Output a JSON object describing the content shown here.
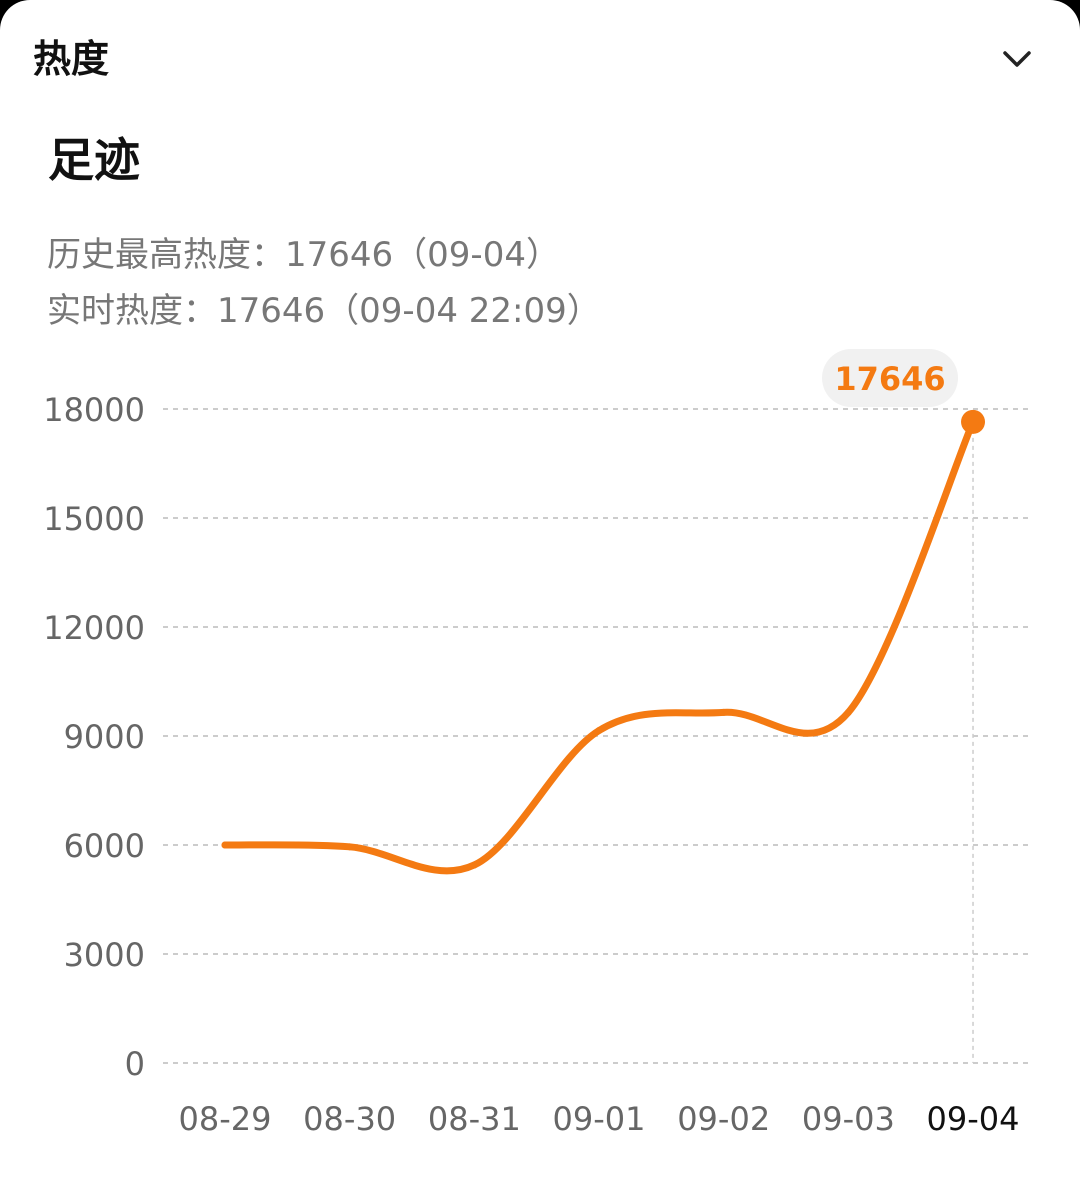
{
  "header": {
    "title": "热度",
    "collapse_icon": "chevron-down-icon"
  },
  "section": {
    "title": "足迹"
  },
  "stats": {
    "peak_text": "历史最高热度：17646（09-04）",
    "realtime_text": "实时热度：17646（09-04 22:09）"
  },
  "colors": {
    "line": "#f47a12",
    "grid": "#cccccc",
    "tick_label": "#666666",
    "active_tick_label": "#111111",
    "tooltip_bg": "#f1f1f1",
    "tooltip_text": "#f47a12"
  },
  "chart_data": {
    "type": "line",
    "categories": [
      "08-29",
      "08-30",
      "08-31",
      "09-01",
      "09-02",
      "09-03",
      "09-04"
    ],
    "series": [
      {
        "values": [
          6000,
          5950,
          5450,
          9150,
          9650,
          9650,
          17646
        ]
      }
    ],
    "ylim": [
      0,
      18000
    ],
    "yticks": [
      "0",
      "3000",
      "6000",
      "9000",
      "12000",
      "15000",
      "18000"
    ],
    "grid": true,
    "grid_style": "dashed",
    "highlight": {
      "category": "09-04",
      "label": "17646"
    }
  }
}
